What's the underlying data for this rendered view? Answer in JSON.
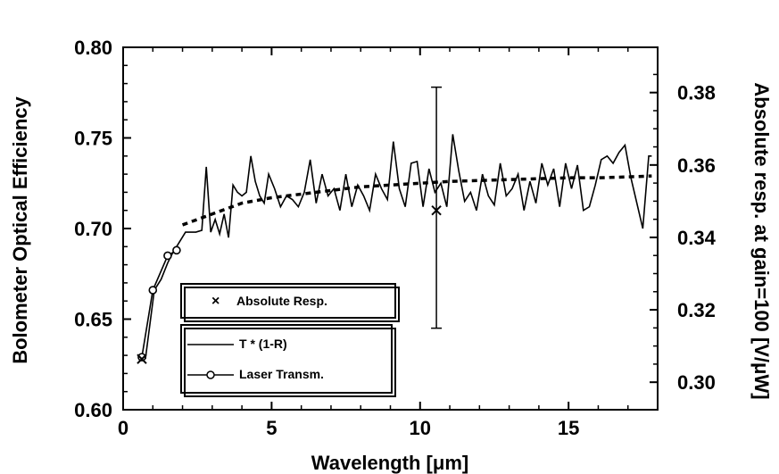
{
  "chart_data": {
    "type": "line",
    "title": "",
    "xlabel": "Wavelength [μm]",
    "ylabel": "Bolometer Optical Efficiency",
    "ylabel_right": "Absolute resp. at gain=100 [V/μW]",
    "xlim": [
      0,
      18
    ],
    "ylim": [
      0.6,
      0.8
    ],
    "ylim_right": [
      0.2924,
      0.3925
    ],
    "xticks": [
      "0",
      "5",
      "10",
      "15"
    ],
    "yticks": [
      "0.60",
      "0.65",
      "0.70",
      "0.75",
      "0.80"
    ],
    "yticks_right": [
      "0.30",
      "0.32",
      "0.34",
      "0.36",
      "0.38"
    ],
    "grid": false,
    "legend_placement": "bottom-left",
    "legend": {
      "absolute_resp": "Absolute Resp.",
      "t_one_minus_r": "T * (1-R)",
      "laser_transm": "Laser Transm."
    },
    "series": [
      {
        "name": "T * (1-R)",
        "style": "solid",
        "x": [
          0.75,
          1.05,
          1.28,
          1.5,
          1.65,
          1.8,
          1.95,
          2.1,
          2.25,
          2.45,
          2.65,
          2.8,
          2.95,
          3.1,
          3.25,
          3.4,
          3.55,
          3.7,
          3.85,
          4.0,
          4.15,
          4.3,
          4.45,
          4.6,
          4.75,
          4.9,
          5.1,
          5.3,
          5.5,
          5.7,
          5.9,
          6.1,
          6.3,
          6.5,
          6.7,
          6.9,
          7.1,
          7.3,
          7.5,
          7.7,
          7.9,
          8.1,
          8.3,
          8.5,
          8.7,
          8.9,
          9.1,
          9.3,
          9.5,
          9.7,
          9.9,
          10.1,
          10.3,
          10.5,
          10.7,
          10.9,
          11.1,
          11.3,
          11.5,
          11.7,
          11.9,
          12.1,
          12.3,
          12.5,
          12.7,
          12.9,
          13.1,
          13.3,
          13.5,
          13.7,
          13.9,
          14.1,
          14.3,
          14.5,
          14.7,
          14.9,
          15.1,
          15.3,
          15.5,
          15.7,
          15.9,
          16.1,
          16.3,
          16.5,
          16.7,
          16.9,
          17.1,
          17.3,
          17.5,
          17.7,
          17.8
        ],
        "y": [
          0.628,
          0.666,
          0.672,
          0.681,
          0.686,
          0.69,
          0.694,
          0.698,
          0.698,
          0.698,
          0.699,
          0.734,
          0.698,
          0.705,
          0.697,
          0.708,
          0.695,
          0.724,
          0.72,
          0.718,
          0.72,
          0.74,
          0.726,
          0.718,
          0.714,
          0.73,
          0.722,
          0.712,
          0.718,
          0.716,
          0.712,
          0.72,
          0.738,
          0.714,
          0.73,
          0.718,
          0.722,
          0.71,
          0.73,
          0.712,
          0.724,
          0.718,
          0.71,
          0.73,
          0.722,
          0.716,
          0.748,
          0.722,
          0.712,
          0.736,
          0.737,
          0.712,
          0.733,
          0.72,
          0.725,
          0.712,
          0.752,
          0.732,
          0.715,
          0.72,
          0.71,
          0.73,
          0.718,
          0.713,
          0.736,
          0.718,
          0.722,
          0.73,
          0.71,
          0.726,
          0.714,
          0.736,
          0.724,
          0.733,
          0.712,
          0.736,
          0.722,
          0.735,
          0.71,
          0.712,
          0.724,
          0.738,
          0.74,
          0.736,
          0.742,
          0.746,
          0.728,
          0.714,
          0.7,
          0.74,
          0.74
        ]
      },
      {
        "name": "Laser Transm.",
        "style": "circles",
        "x": [
          0.63,
          1.0,
          1.5,
          1.8
        ],
        "y": [
          0.629,
          0.666,
          0.685,
          0.688
        ]
      },
      {
        "name": "",
        "style": "dotted",
        "x": [
          2.0,
          2.5,
          3.0,
          3.5,
          4.0,
          5.0,
          6.0,
          7.0,
          8.0,
          9.0,
          10.0,
          11.0,
          12.0,
          13.0,
          14.0,
          15.0,
          16.0,
          17.0,
          17.8
        ],
        "y": [
          0.702,
          0.705,
          0.708,
          0.711,
          0.714,
          0.717,
          0.719,
          0.721,
          0.723,
          0.724,
          0.725,
          0.726,
          0.7265,
          0.727,
          0.7275,
          0.728,
          0.728,
          0.7285,
          0.729
        ]
      },
      {
        "name": "Absolute Resp.",
        "style": "cross",
        "x": [
          0.63,
          10.55
        ],
        "y": [
          0.628,
          0.71
        ],
        "error": [
          null,
          [
            0.645,
            0.778
          ]
        ]
      }
    ]
  }
}
